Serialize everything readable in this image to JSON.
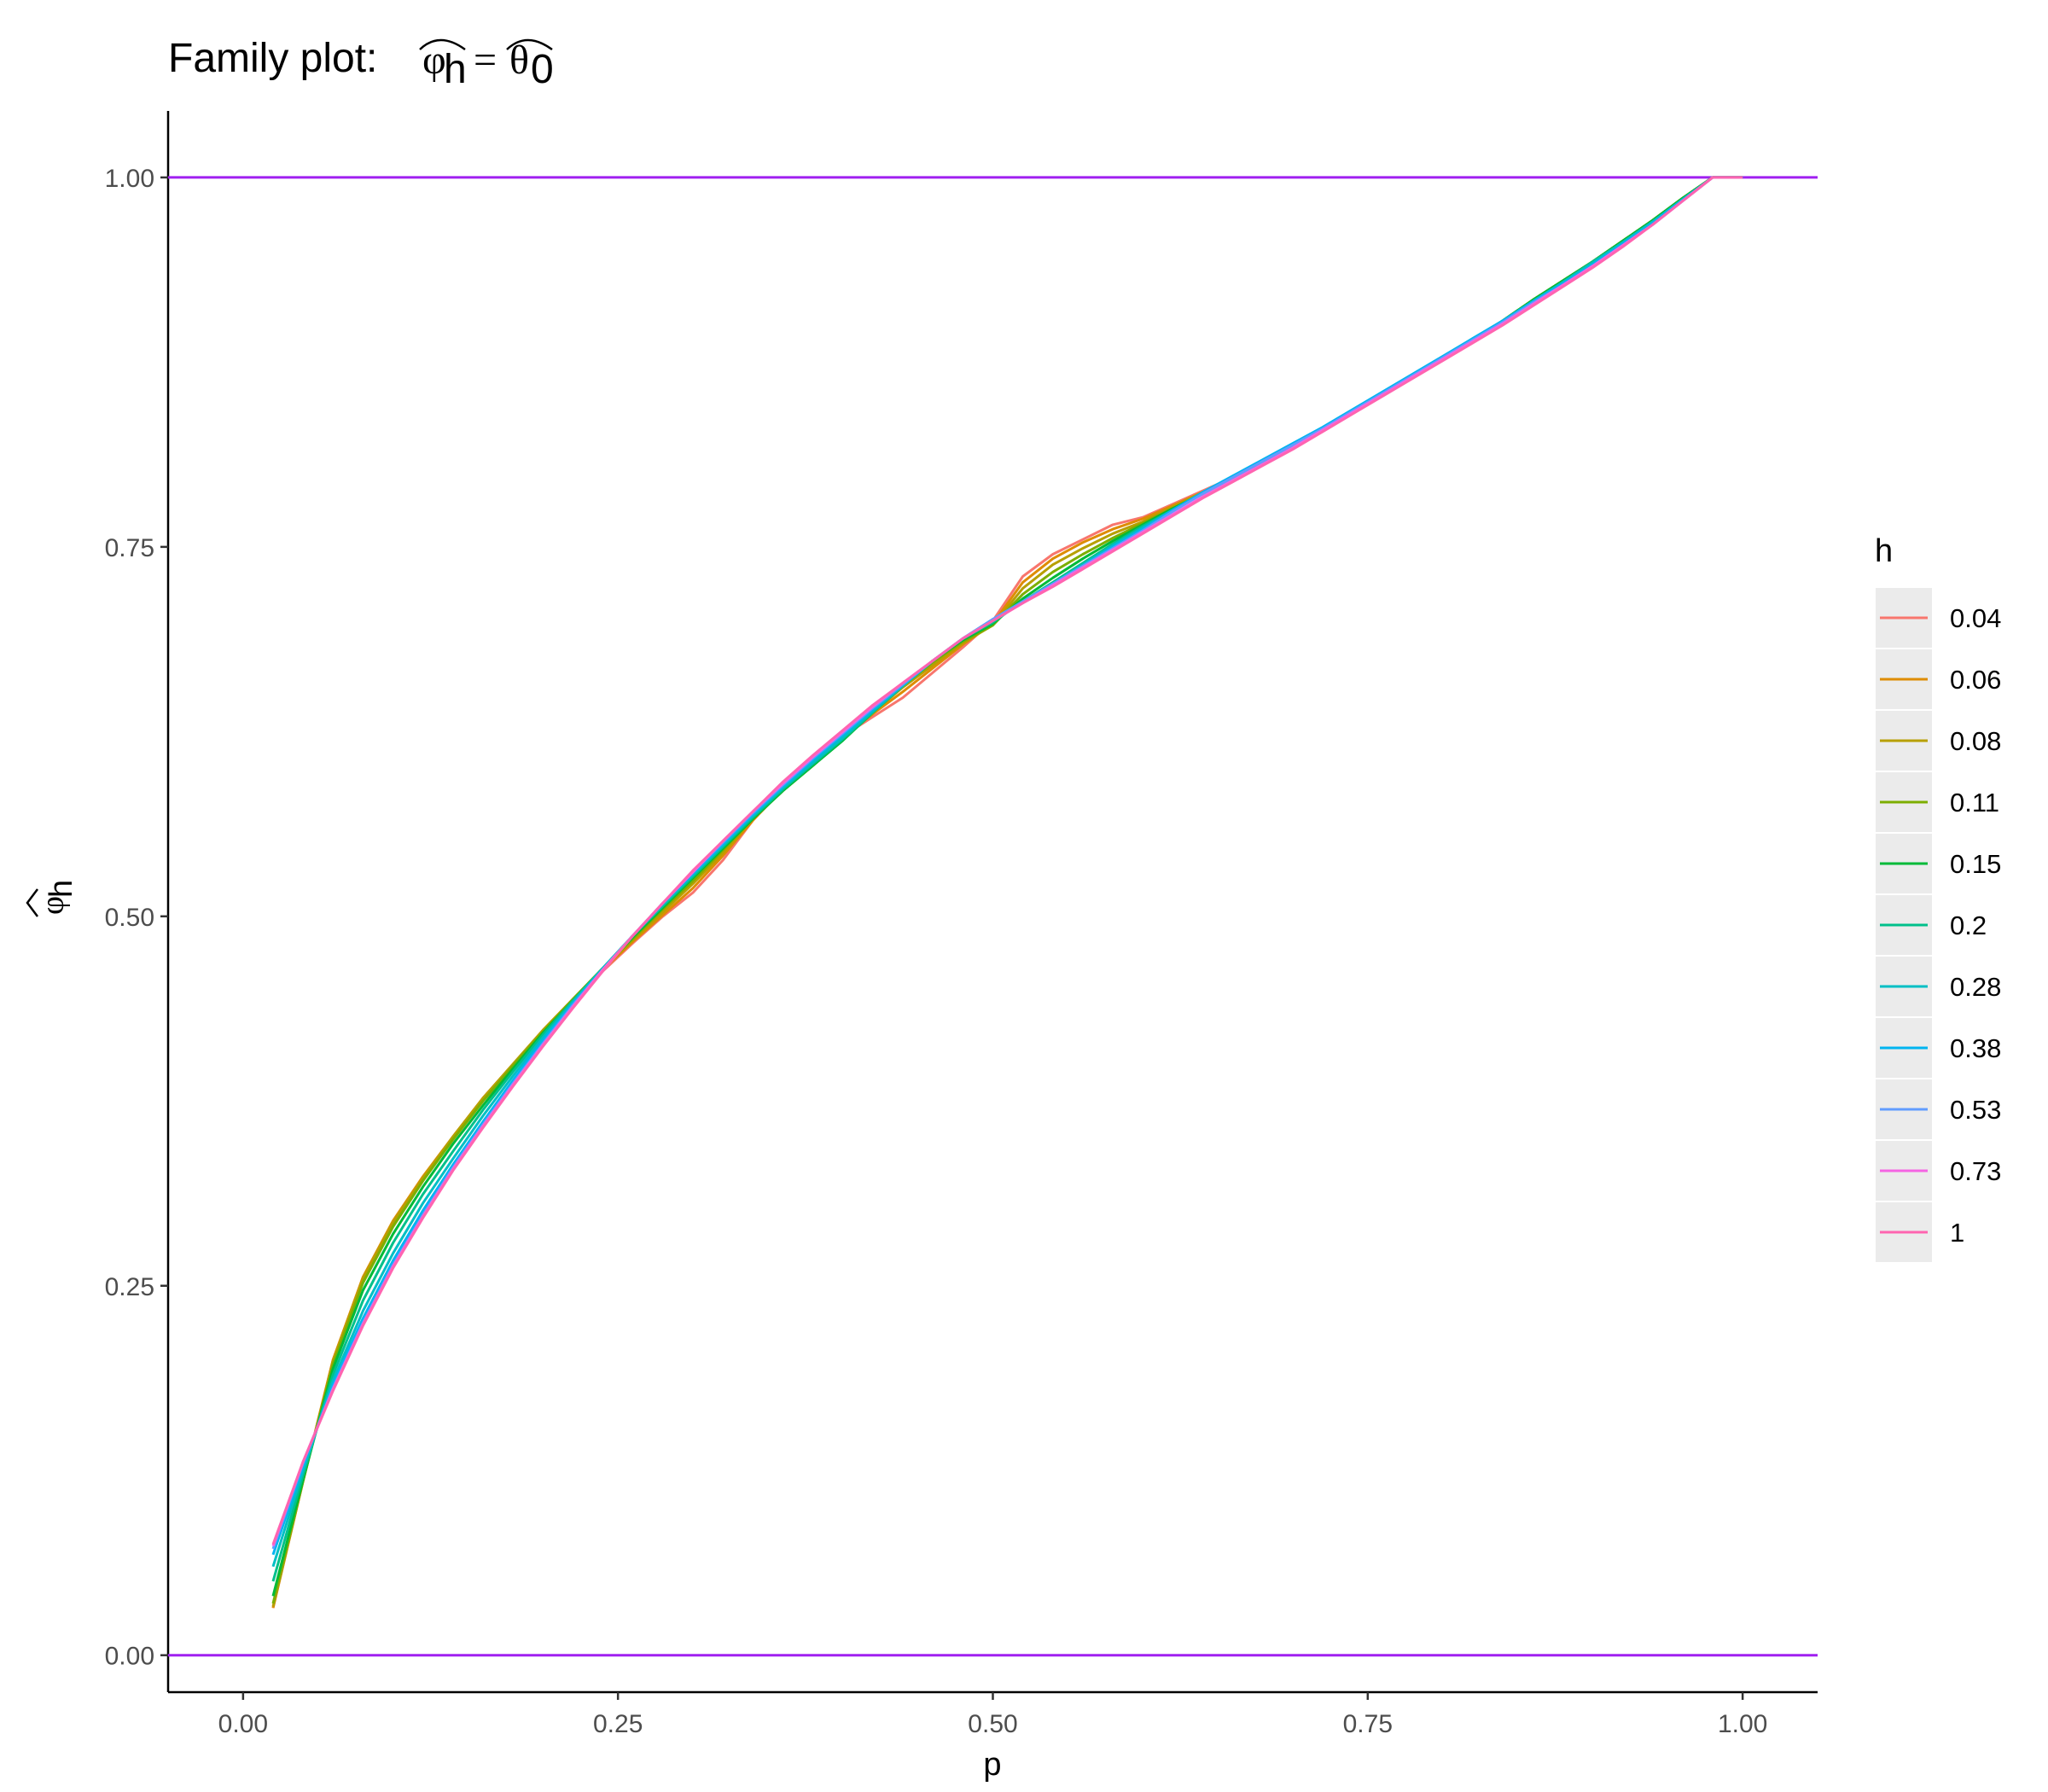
{
  "chart_data": {
    "type": "line",
    "title": {
      "prefix": "Family plot: ",
      "lhs_symbol": "φ",
      "lhs_subscript": "h",
      "equals": "=",
      "rhs_symbol": "θ",
      "rhs_subscript": "0"
    },
    "xlabel": "p",
    "ylabel": {
      "symbol": "φ",
      "subscript": "h"
    },
    "xlim": [
      -0.05,
      1.05
    ],
    "ylim": [
      -0.025,
      1.045
    ],
    "xticks": [
      0,
      0.25,
      0.5,
      0.75,
      1
    ],
    "xtick_labels": [
      "0.00",
      "0.25",
      "0.50",
      "0.75",
      "1.00"
    ],
    "yticks": [
      0,
      0.25,
      0.5,
      0.75,
      1
    ],
    "ytick_labels": [
      "0.00",
      "0.25",
      "0.50",
      "0.75",
      "1.00"
    ],
    "reference_lines": [
      {
        "y": 0,
        "color": "#A020F0"
      },
      {
        "y": 1,
        "color": "#A020F0"
      }
    ],
    "legend": {
      "title": "h",
      "position": "right"
    },
    "x": [
      0.02,
      0.04,
      0.06,
      0.08,
      0.1,
      0.12,
      0.14,
      0.16,
      0.18,
      0.2,
      0.22,
      0.24,
      0.26,
      0.28,
      0.3,
      0.32,
      0.34,
      0.36,
      0.38,
      0.4,
      0.42,
      0.44,
      0.46,
      0.48,
      0.5,
      0.52,
      0.54,
      0.56,
      0.58,
      0.6,
      0.62,
      0.64,
      0.66,
      0.68,
      0.7,
      0.72,
      0.74,
      0.76,
      0.78,
      0.8,
      0.82,
      0.84,
      0.86,
      0.88,
      0.9,
      0.92,
      0.94,
      0.96,
      0.98,
      1.0
    ],
    "series": [
      {
        "name": "0.04",
        "color": "#F8766D",
        "values": [
          0.032,
          0.118,
          0.2,
          0.255,
          0.292,
          0.322,
          0.349,
          0.375,
          0.398,
          0.421,
          0.442,
          0.463,
          0.482,
          0.5,
          0.516,
          0.538,
          0.565,
          0.587,
          0.604,
          0.622,
          0.635,
          0.648,
          0.665,
          0.682,
          0.7,
          0.73,
          0.745,
          0.755,
          0.765,
          0.77,
          0.779,
          0.788,
          0.797,
          0.807,
          0.818,
          0.829,
          0.841,
          0.853,
          0.865,
          0.878,
          0.89,
          0.903,
          0.917,
          0.93,
          0.943,
          0.957,
          0.971,
          0.986,
          1.0,
          1.0
        ]
      },
      {
        "name": "0.06",
        "color": "#DE8C00",
        "values": [
          0.032,
          0.118,
          0.2,
          0.256,
          0.294,
          0.324,
          0.351,
          0.377,
          0.4,
          0.423,
          0.444,
          0.464,
          0.483,
          0.501,
          0.519,
          0.541,
          0.565,
          0.586,
          0.604,
          0.621,
          0.637,
          0.652,
          0.668,
          0.684,
          0.698,
          0.726,
          0.742,
          0.753,
          0.762,
          0.769,
          0.778,
          0.787,
          0.797,
          0.807,
          0.818,
          0.829,
          0.841,
          0.853,
          0.865,
          0.878,
          0.89,
          0.903,
          0.917,
          0.93,
          0.943,
          0.957,
          0.971,
          0.986,
          1.0,
          1.0
        ]
      },
      {
        "name": "0.08",
        "color": "#B79F00",
        "values": [
          0.033,
          0.118,
          0.199,
          0.255,
          0.293,
          0.323,
          0.351,
          0.377,
          0.4,
          0.423,
          0.444,
          0.465,
          0.484,
          0.503,
          0.522,
          0.543,
          0.566,
          0.585,
          0.603,
          0.62,
          0.638,
          0.655,
          0.67,
          0.685,
          0.697,
          0.722,
          0.738,
          0.749,
          0.759,
          0.767,
          0.777,
          0.787,
          0.797,
          0.807,
          0.818,
          0.829,
          0.841,
          0.853,
          0.865,
          0.878,
          0.89,
          0.903,
          0.917,
          0.93,
          0.943,
          0.957,
          0.971,
          0.986,
          1.0,
          1.0
        ]
      },
      {
        "name": "0.11",
        "color": "#7CAE00",
        "values": [
          0.035,
          0.118,
          0.197,
          0.252,
          0.29,
          0.321,
          0.349,
          0.375,
          0.399,
          0.422,
          0.444,
          0.465,
          0.485,
          0.505,
          0.524,
          0.545,
          0.566,
          0.585,
          0.602,
          0.62,
          0.638,
          0.656,
          0.672,
          0.686,
          0.697,
          0.718,
          0.733,
          0.745,
          0.756,
          0.766,
          0.776,
          0.786,
          0.796,
          0.807,
          0.818,
          0.829,
          0.841,
          0.853,
          0.865,
          0.878,
          0.89,
          0.903,
          0.917,
          0.93,
          0.943,
          0.957,
          0.971,
          0.986,
          1.0,
          1.0
        ]
      },
      {
        "name": "0.15",
        "color": "#00BA38",
        "values": [
          0.04,
          0.119,
          0.194,
          0.247,
          0.285,
          0.317,
          0.346,
          0.372,
          0.397,
          0.421,
          0.443,
          0.465,
          0.486,
          0.506,
          0.526,
          0.546,
          0.566,
          0.585,
          0.602,
          0.619,
          0.638,
          0.656,
          0.673,
          0.687,
          0.698,
          0.715,
          0.729,
          0.742,
          0.754,
          0.765,
          0.776,
          0.786,
          0.796,
          0.807,
          0.818,
          0.829,
          0.841,
          0.853,
          0.865,
          0.878,
          0.89,
          0.903,
          0.917,
          0.93,
          0.943,
          0.957,
          0.971,
          0.986,
          1.0,
          1.0
        ]
      },
      {
        "name": "0.2",
        "color": "#00C08B",
        "values": [
          0.05,
          0.122,
          0.19,
          0.24,
          0.279,
          0.312,
          0.341,
          0.369,
          0.395,
          0.42,
          0.443,
          0.465,
          0.487,
          0.507,
          0.527,
          0.547,
          0.567,
          0.586,
          0.603,
          0.62,
          0.638,
          0.656,
          0.673,
          0.688,
          0.699,
          0.713,
          0.726,
          0.739,
          0.752,
          0.764,
          0.775,
          0.786,
          0.796,
          0.807,
          0.818,
          0.829,
          0.841,
          0.853,
          0.865,
          0.878,
          0.89,
          0.903,
          0.916,
          0.929,
          0.943,
          0.956,
          0.97,
          0.985,
          1.0,
          1.0
        ]
      },
      {
        "name": "0.28",
        "color": "#00BFC4",
        "values": [
          0.06,
          0.125,
          0.186,
          0.233,
          0.272,
          0.306,
          0.336,
          0.365,
          0.392,
          0.418,
          0.442,
          0.465,
          0.487,
          0.508,
          0.528,
          0.548,
          0.568,
          0.587,
          0.604,
          0.621,
          0.639,
          0.656,
          0.673,
          0.688,
          0.7,
          0.713,
          0.725,
          0.738,
          0.751,
          0.763,
          0.775,
          0.786,
          0.797,
          0.808,
          0.819,
          0.83,
          0.842,
          0.854,
          0.866,
          0.878,
          0.891,
          0.903,
          0.916,
          0.929,
          0.942,
          0.956,
          0.97,
          0.985,
          1.0,
          1.0
        ]
      },
      {
        "name": "0.38",
        "color": "#00B4F0",
        "values": [
          0.068,
          0.128,
          0.183,
          0.228,
          0.267,
          0.301,
          0.332,
          0.361,
          0.389,
          0.416,
          0.441,
          0.464,
          0.487,
          0.509,
          0.529,
          0.549,
          0.569,
          0.588,
          0.606,
          0.623,
          0.64,
          0.657,
          0.673,
          0.688,
          0.701,
          0.713,
          0.725,
          0.737,
          0.75,
          0.762,
          0.775,
          0.787,
          0.798,
          0.809,
          0.82,
          0.831,
          0.843,
          0.855,
          0.867,
          0.879,
          0.891,
          0.903,
          0.916,
          0.928,
          0.941,
          0.955,
          0.969,
          0.985,
          1.0,
          1.0
        ]
      },
      {
        "name": "0.53",
        "color": "#619CFF",
        "values": [
          0.072,
          0.13,
          0.181,
          0.225,
          0.264,
          0.298,
          0.33,
          0.359,
          0.387,
          0.414,
          0.44,
          0.464,
          0.487,
          0.509,
          0.53,
          0.55,
          0.57,
          0.589,
          0.607,
          0.624,
          0.641,
          0.657,
          0.673,
          0.688,
          0.701,
          0.713,
          0.725,
          0.737,
          0.749,
          0.761,
          0.774,
          0.786,
          0.797,
          0.808,
          0.819,
          0.83,
          0.842,
          0.854,
          0.866,
          0.878,
          0.89,
          0.902,
          0.915,
          0.927,
          0.94,
          0.954,
          0.968,
          0.984,
          1.0,
          1.0
        ]
      },
      {
        "name": "0.73",
        "color": "#F564E3",
        "values": [
          0.074,
          0.131,
          0.18,
          0.224,
          0.263,
          0.297,
          0.329,
          0.358,
          0.386,
          0.413,
          0.439,
          0.464,
          0.487,
          0.509,
          0.53,
          0.551,
          0.571,
          0.59,
          0.608,
          0.625,
          0.642,
          0.658,
          0.673,
          0.688,
          0.7,
          0.712,
          0.724,
          0.736,
          0.748,
          0.76,
          0.772,
          0.784,
          0.795,
          0.806,
          0.817,
          0.829,
          0.841,
          0.853,
          0.865,
          0.877,
          0.889,
          0.901,
          0.914,
          0.927,
          0.94,
          0.954,
          0.968,
          0.984,
          1.0,
          1.0
        ]
      },
      {
        "name": "1",
        "color": "#FF64B0",
        "values": [
          0.075,
          0.131,
          0.179,
          0.223,
          0.262,
          0.296,
          0.328,
          0.357,
          0.385,
          0.412,
          0.438,
          0.463,
          0.487,
          0.509,
          0.531,
          0.551,
          0.571,
          0.591,
          0.609,
          0.626,
          0.643,
          0.658,
          0.673,
          0.688,
          0.7,
          0.712,
          0.723,
          0.735,
          0.747,
          0.759,
          0.771,
          0.783,
          0.794,
          0.805,
          0.816,
          0.828,
          0.84,
          0.852,
          0.864,
          0.876,
          0.888,
          0.9,
          0.913,
          0.926,
          0.939,
          0.953,
          0.968,
          0.984,
          1.0,
          1.0
        ]
      }
    ]
  }
}
